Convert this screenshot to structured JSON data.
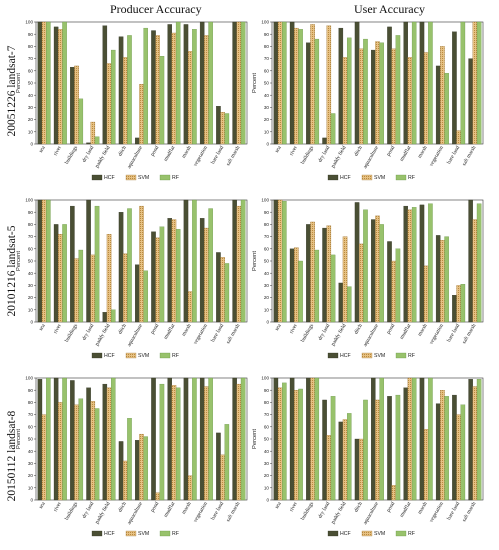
{
  "columns": [
    "Producer Accuracy",
    "User Accuracy"
  ],
  "rows": [
    "20051226 landsat-7",
    "20101216 landsat-5",
    "20150112 landsat-8"
  ],
  "colors": {
    "HCF": "#4a4f34",
    "SVM": "#e0ba7a",
    "RF": "#98c26c"
  },
  "chart_data": [
    {
      "type": "bar",
      "title": "Producer Accuracy",
      "row": "20051226 landsat-7",
      "ylabel": "Percent",
      "ylim": [
        0,
        100
      ],
      "yticks": [
        0,
        10,
        20,
        30,
        40,
        50,
        60,
        70,
        80,
        90,
        100
      ],
      "categories": [
        "sea",
        "river",
        "buildings",
        "dry land",
        "paddy field",
        "ditch",
        "aquaculture",
        "pond",
        "mudflat",
        "marsh",
        "vegetation",
        "bare land",
        "salt marsh"
      ],
      "series": [
        {
          "name": "HCF",
          "values": [
            100,
            96,
            63,
            1,
            97,
            88,
            5,
            93,
            98,
            98,
            100,
            31,
            100
          ]
        },
        {
          "name": "SVM",
          "values": [
            100,
            94,
            64,
            18,
            66,
            71,
            49,
            89,
            91,
            76,
            89,
            26,
            100
          ]
        },
        {
          "name": "RF",
          "values": [
            100,
            100,
            37,
            6,
            77,
            89,
            95,
            72,
            100,
            94,
            100,
            25,
            100
          ]
        }
      ]
    },
    {
      "type": "bar",
      "title": "User Accuracy",
      "row": "20051226 landsat-7",
      "ylabel": "Percent",
      "ylim": [
        0,
        100
      ],
      "yticks": [
        0,
        10,
        20,
        30,
        40,
        50,
        60,
        70,
        80,
        90,
        100
      ],
      "categories": [
        "sea",
        "river",
        "buildings",
        "dry land",
        "paddy field",
        "ditch",
        "aquaculture",
        "pond",
        "mudflat",
        "marsh",
        "vegetation",
        "bare land",
        "salt marsh"
      ],
      "series": [
        {
          "name": "HCF",
          "values": [
            100,
            100,
            83,
            5,
            95,
            100,
            77,
            96,
            100,
            100,
            64,
            92,
            70
          ]
        },
        {
          "name": "SVM",
          "values": [
            100,
            95,
            98,
            97,
            71,
            78,
            84,
            78,
            71,
            75,
            80,
            11,
            100
          ]
        },
        {
          "name": "RF",
          "values": [
            100,
            94,
            86,
            25,
            87,
            86,
            83,
            89,
            100,
            100,
            58,
            100,
            100
          ]
        }
      ]
    },
    {
      "type": "bar",
      "title": "Producer Accuracy",
      "row": "20101216 landsat-5",
      "ylabel": "Percent",
      "ylim": [
        0,
        100
      ],
      "yticks": [
        0,
        10,
        20,
        30,
        40,
        50,
        60,
        70,
        80,
        90,
        100
      ],
      "categories": [
        "sea",
        "river",
        "buildings",
        "dry land",
        "paddy field",
        "ditch",
        "aquaculture",
        "pond",
        "mudflat",
        "marsh",
        "vegetation",
        "bare land",
        "salt marsh"
      ],
      "series": [
        {
          "name": "HCF",
          "values": [
            100,
            80,
            95,
            100,
            8,
            90,
            47,
            74,
            85,
            100,
            85,
            57,
            100
          ]
        },
        {
          "name": "SVM",
          "values": [
            100,
            72,
            52,
            55,
            72,
            56,
            95,
            69,
            84,
            25,
            77,
            53,
            95
          ]
        },
        {
          "name": "RF",
          "values": [
            100,
            80,
            59,
            95,
            10,
            93,
            42,
            78,
            76,
            100,
            93,
            48,
            100
          ]
        }
      ]
    },
    {
      "type": "bar",
      "title": "User Accuracy",
      "row": "20101216 landsat-5",
      "ylabel": "Percent",
      "ylim": [
        0,
        100
      ],
      "yticks": [
        0,
        10,
        20,
        30,
        40,
        50,
        60,
        70,
        80,
        90,
        100
      ],
      "categories": [
        "sea",
        "river",
        "buildings",
        "dry land",
        "paddy field",
        "ditch",
        "aquaculture",
        "pond",
        "mudflat",
        "marsh",
        "vegetation",
        "bare land",
        "salt marsh"
      ],
      "series": [
        {
          "name": "HCF",
          "values": [
            100,
            60,
            80,
            77,
            32,
            98,
            84,
            66,
            95,
            96,
            71,
            22,
            100
          ]
        },
        {
          "name": "SVM",
          "values": [
            100,
            61,
            82,
            79,
            70,
            64,
            87,
            50,
            92,
            46,
            67,
            30,
            84
          ]
        },
        {
          "name": "RF",
          "values": [
            99,
            50,
            59,
            55,
            29,
            92,
            80,
            60,
            94,
            97,
            70,
            31,
            97
          ]
        }
      ]
    },
    {
      "type": "bar",
      "title": "Producer Accuracy",
      "row": "20150112 landsat-8",
      "ylabel": "Percent",
      "ylim": [
        0,
        100
      ],
      "yticks": [
        0,
        10,
        20,
        30,
        40,
        50,
        60,
        70,
        80,
        90,
        100
      ],
      "categories": [
        "sea",
        "river",
        "buildings",
        "dry land",
        "paddy field",
        "ditch",
        "aquaculture",
        "pond",
        "mudflat",
        "marsh",
        "vegetation",
        "bare land",
        "salt marsh"
      ],
      "series": [
        {
          "name": "HCF",
          "values": [
            99,
            100,
            98,
            92,
            95,
            48,
            49,
            100,
            100,
            100,
            100,
            55,
            100
          ]
        },
        {
          "name": "SVM",
          "values": [
            70,
            80,
            78,
            81,
            92,
            32,
            54,
            6,
            94,
            20,
            93,
            37,
            95
          ]
        },
        {
          "name": "RF",
          "values": [
            100,
            100,
            83,
            75,
            100,
            67,
            52,
            95,
            92,
            100,
            100,
            62,
            100
          ]
        }
      ]
    },
    {
      "type": "bar",
      "title": "User Accuracy",
      "row": "20150112 landsat-8",
      "ylabel": "Percent",
      "ylim": [
        0,
        100
      ],
      "yticks": [
        0,
        10,
        20,
        30,
        40,
        50,
        60,
        70,
        80,
        90,
        100
      ],
      "categories": [
        "sea",
        "river",
        "buildings",
        "dry land",
        "paddy field",
        "ditch",
        "aquaculture",
        "pond",
        "mudflat",
        "marsh",
        "vegetation",
        "bare land",
        "salt marsh"
      ],
      "series": [
        {
          "name": "HCF",
          "values": [
            100,
            100,
            100,
            82,
            64,
            50,
            100,
            85,
            92,
            100,
            79,
            86,
            99
          ]
        },
        {
          "name": "SVM",
          "values": [
            92,
            90,
            100,
            53,
            66,
            50,
            82,
            12,
            100,
            58,
            90,
            70,
            93
          ]
        },
        {
          "name": "RF",
          "values": [
            96,
            91,
            100,
            85,
            71,
            82,
            100,
            86,
            100,
            100,
            85,
            78,
            99
          ]
        }
      ]
    }
  ]
}
